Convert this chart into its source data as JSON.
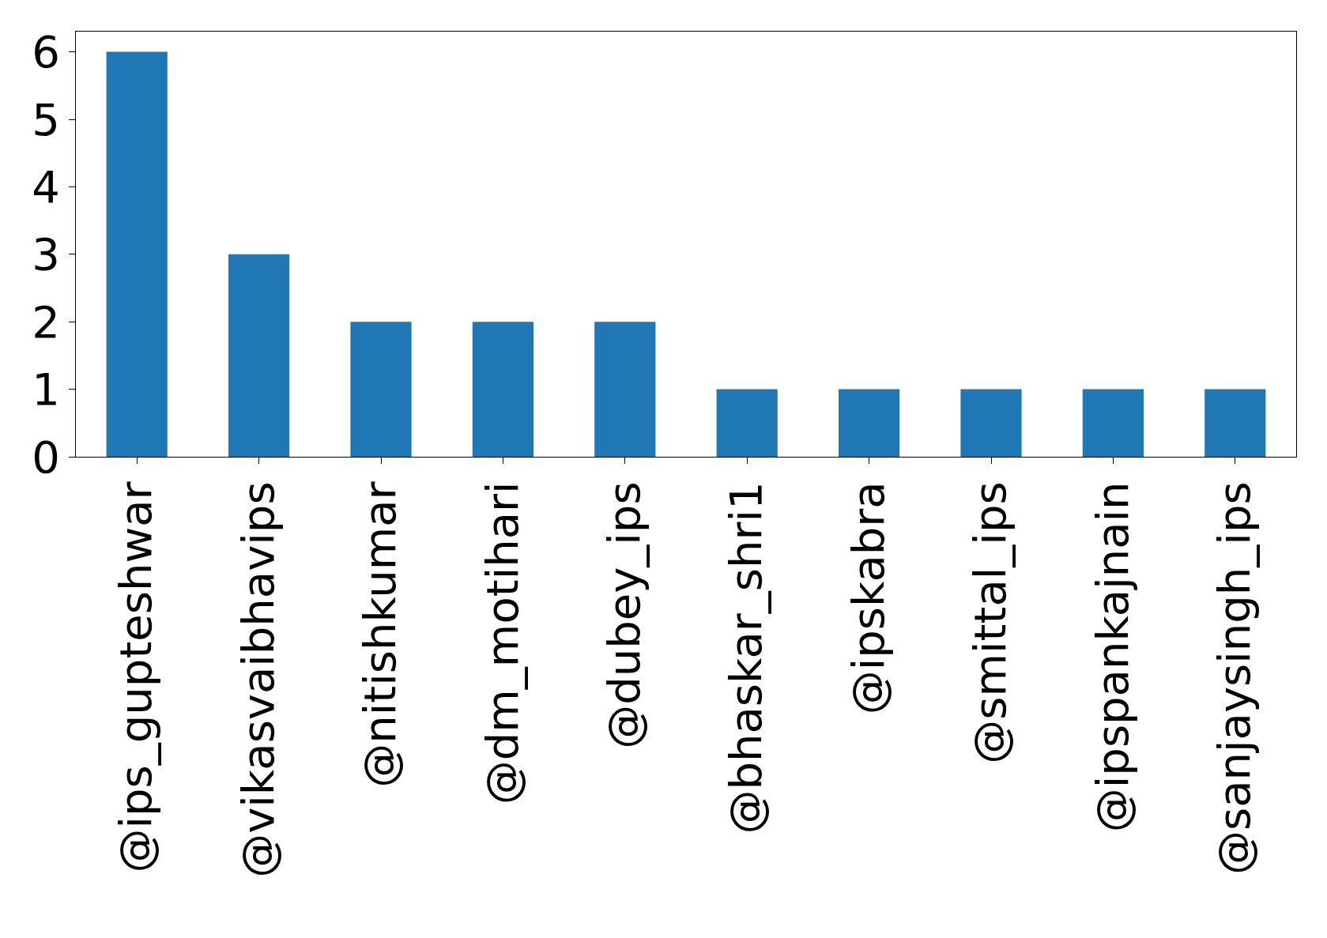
{
  "chart_data": {
    "type": "bar",
    "categories": [
      "@ips_gupteshwar",
      "@vikasvaibhavips",
      "@nitishkumar",
      "@dm_motihari",
      "@dubey_ips",
      "@bhaskar_shri1",
      "@ipskabra",
      "@smittal_ips",
      "@ipspankajnain",
      "@sanjaysingh_ips"
    ],
    "values": [
      6,
      3,
      2,
      2,
      2,
      1,
      1,
      1,
      1,
      1
    ],
    "color": "#1f77b4",
    "ylim": [
      0,
      6.3
    ],
    "yticks": [
      0,
      1,
      2,
      3,
      4,
      5,
      6
    ],
    "grid": false,
    "legend": false
  }
}
